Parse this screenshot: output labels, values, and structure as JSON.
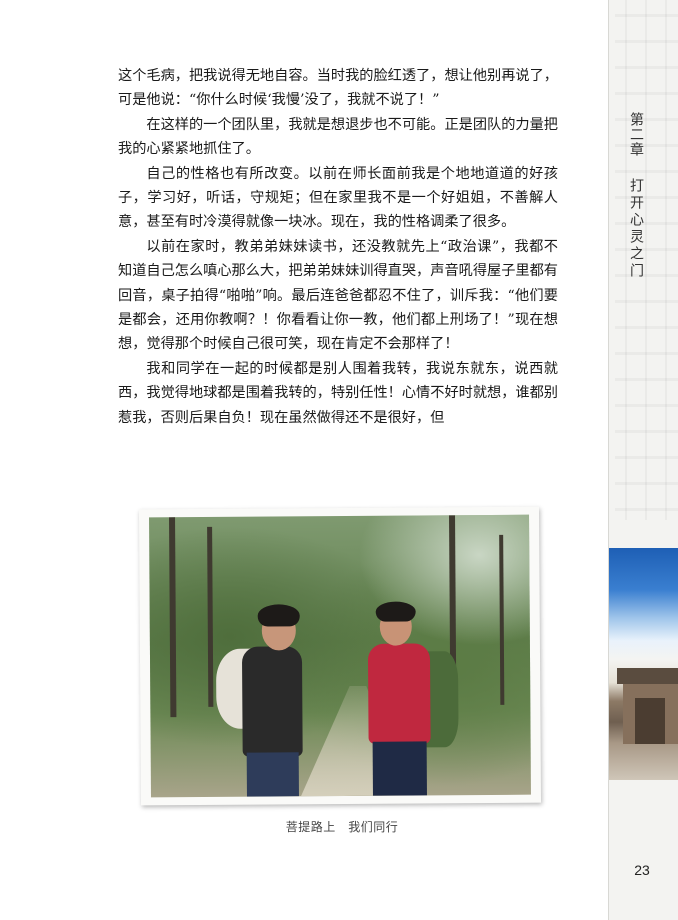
{
  "header": {
    "chapter": "第二章",
    "chapter_title": "打开心灵之门"
  },
  "body": {
    "paragraphs": [
      "这个毛病，把我说得无地自容。当时我的脸红透了，想让他别再说了，可是他说：“你什么时候‘我慢’没了，我就不说了！”",
      "在这样的一个团队里，我就是想退步也不可能。正是团队的力量把我的心紧紧地抓住了。",
      "自己的性格也有所改变。以前在师长面前我是个地地道道的好孩子，学习好，听话，守规矩；但在家里我不是一个好姐姐，不善解人意，甚至有时冷漠得就像一块冰。现在，我的性格调柔了很多。",
      "以前在家时，教弟弟妹妹读书，还没教就先上“政治课”，我都不知道自己怎么嗔心那么大，把弟弟妹妹训得直哭，声音吼得屋子里都有回音，桌子拍得“啪啪”响。最后连爸爸都忍不住了，训斥我：“他们要是都会，还用你教啊？！你看看让你一教，他们都上刑场了！”现在想想，觉得那个时候自己很可笑，现在肯定不会那样了！",
      "我和同学在一起的时候都是别人围着我转，我说东就东，说西就西，我觉得地球都是围着我转的，特别任性！心情不好时就想，谁都别惹我，否则后果自负！现在虽然做得还不是很好，但"
    ]
  },
  "figure": {
    "caption": "菩提路上　我们同行"
  },
  "footer": {
    "page_number": "23"
  }
}
